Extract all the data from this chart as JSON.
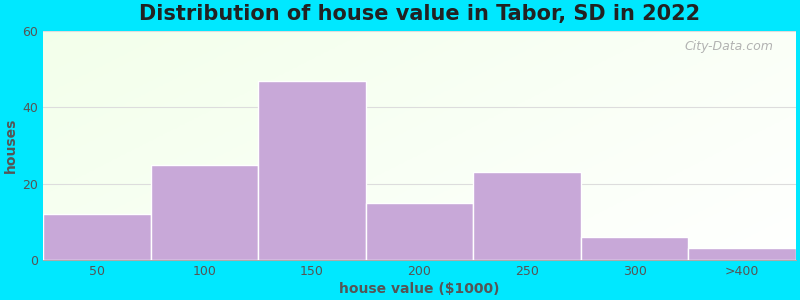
{
  "title": "Distribution of house value in Tabor, SD in 2022",
  "xlabel": "house value ($1000)",
  "ylabel": "houses",
  "bar_labels": [
    "50",
    "100",
    "150",
    "200",
    "250",
    "300",
    ">400"
  ],
  "bar_heights": [
    12,
    25,
    47,
    15,
    23,
    6,
    3
  ],
  "bar_color": "#c8a8d8",
  "bar_edge_color": "#c8a8d8",
  "ylim": [
    0,
    60
  ],
  "yticks": [
    0,
    20,
    40,
    60
  ],
  "bg_outer": "#00e8ff",
  "grid_color": "#dddddd",
  "title_fontsize": 15,
  "axis_label_fontsize": 10,
  "tick_fontsize": 9,
  "watermark_text": "City-Data.com",
  "text_color": "#555555"
}
